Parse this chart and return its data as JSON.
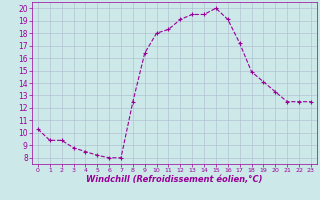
{
  "x": [
    0,
    1,
    2,
    3,
    4,
    5,
    6,
    7,
    8,
    9,
    10,
    11,
    12,
    13,
    14,
    15,
    16,
    17,
    18,
    19,
    20,
    21,
    22,
    23
  ],
  "y": [
    10.3,
    9.4,
    9.4,
    8.8,
    8.5,
    8.2,
    8.0,
    8.0,
    12.5,
    16.4,
    18.0,
    18.3,
    19.1,
    19.5,
    19.5,
    20.0,
    19.1,
    17.2,
    14.9,
    14.1,
    13.3,
    12.5,
    12.5,
    12.5
  ],
  "line_color": "#990099",
  "marker": "+",
  "bg_color": "#cce8e8",
  "grid_color": "#aabbcc",
  "xlabel": "Windchill (Refroidissement éolien,°C)",
  "xlabel_color": "#990099",
  "xlim": [
    -0.5,
    23.5
  ],
  "ylim": [
    7.5,
    20.5
  ],
  "yticks": [
    8,
    9,
    10,
    11,
    12,
    13,
    14,
    15,
    16,
    17,
    18,
    19,
    20
  ],
  "xticks": [
    0,
    1,
    2,
    3,
    4,
    5,
    6,
    7,
    8,
    9,
    10,
    11,
    12,
    13,
    14,
    15,
    16,
    17,
    18,
    19,
    20,
    21,
    22,
    23
  ],
  "tick_color": "#990099",
  "tick_fontsize": 4.5,
  "xlabel_fontsize": 6.0,
  "ytick_fontsize": 5.5
}
